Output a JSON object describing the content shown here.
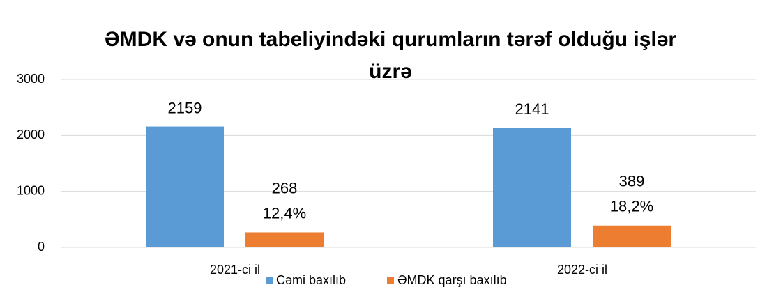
{
  "chart_data": {
    "type": "bar",
    "title": "ƏMDK və onun tabeliyindəki qurumların tərəf olduğu işlər üzrə",
    "categories": [
      "2021-ci il",
      "2022-ci il"
    ],
    "series": [
      {
        "name": "Cəmi baxılıb",
        "color": "#5b9bd5",
        "values": [
          2159,
          2141
        ]
      },
      {
        "name": "ƏMDK qarşı baxılıb",
        "color": "#ed7d31",
        "values": [
          268,
          389
        ],
        "share_labels": [
          "12,4%",
          "18,2%"
        ]
      }
    ],
    "ylim": [
      0,
      3000
    ],
    "yticks": [
      0,
      1000,
      2000,
      3000
    ],
    "grid": true,
    "legend": "bottom"
  }
}
